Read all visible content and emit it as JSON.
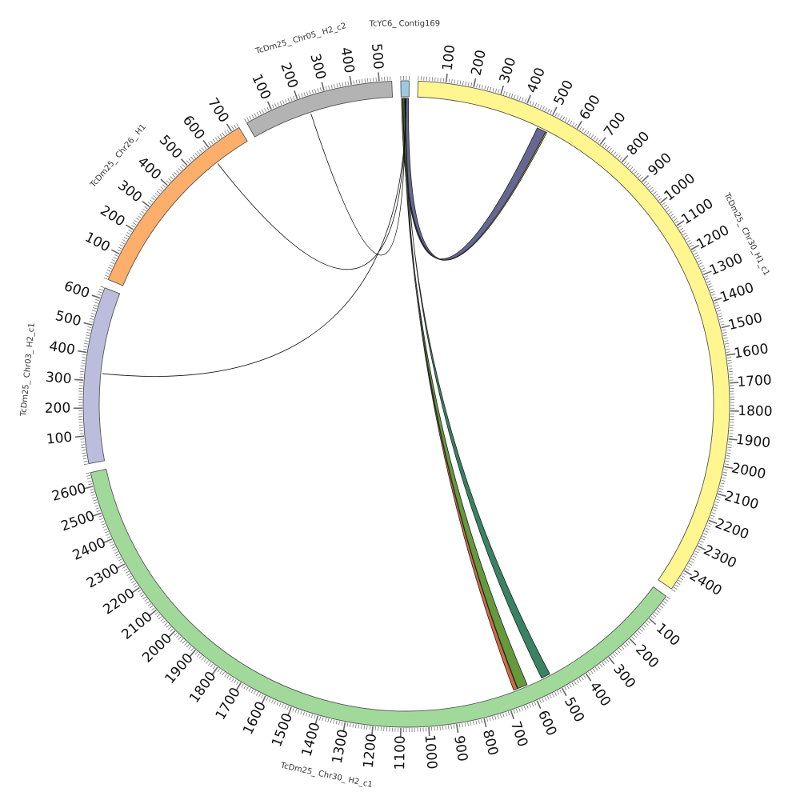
{
  "diagram": {
    "type": "circos",
    "sequences": [
      {
        "id": "contig169",
        "name": "TcYC6_ Contig169",
        "length": 30,
        "color": "#9ecae1",
        "major_step": 100,
        "show_labels": false
      },
      {
        "id": "chr30h1",
        "name": "TcDm25_ Chr30_H1_c1",
        "length": 2480,
        "color": "#fff68f",
        "major_step": 100,
        "show_labels": true
      },
      {
        "id": "chr30h2",
        "name": "TcDm25_ Chr30_ H2_c1",
        "length": 2650,
        "color": "#a1d99b",
        "major_step": 100,
        "show_labels": true
      },
      {
        "id": "chr03h2",
        "name": "TcDm25_ Chr03_ H2_c1",
        "length": 640,
        "color": "#bcbddc",
        "major_step": 100,
        "show_labels": true
      },
      {
        "id": "chr26h1",
        "name": "TcDm25_ Chr26_ H1",
        "length": 730,
        "color": "#fdae6b",
        "major_step": 100,
        "show_labels": true
      },
      {
        "id": "chr05h2",
        "name": "TcDm25_ Chr05_ H2_c2",
        "length": 545,
        "color": "#b3b3b3",
        "major_step": 100,
        "show_labels": true
      }
    ],
    "links": [
      {
        "source": "contig169",
        "source_start": 2,
        "source_end": 28,
        "target": "chr30h1",
        "target_start": 470,
        "target_end": 505,
        "color": "#5e5f8c",
        "kind": "band"
      },
      {
        "source": "contig169",
        "source_start": 2,
        "source_end": 6,
        "target": "chr30h1",
        "target_start": 505,
        "target_end": 510,
        "color": "#b8b03b",
        "kind": "band"
      },
      {
        "source": "contig169",
        "source_start": 8,
        "source_end": 12,
        "target": "chr30h2",
        "target_start": 650,
        "target_end": 665,
        "color": "#d0623a",
        "kind": "band"
      },
      {
        "source": "contig169",
        "source_start": 8,
        "source_end": 14,
        "target": "chr30h2",
        "target_start": 610,
        "target_end": 648,
        "color": "#5c9432",
        "kind": "band"
      },
      {
        "source": "contig169",
        "source_start": 13,
        "source_end": 16,
        "target": "chr30h2",
        "target_start": 515,
        "target_end": 550,
        "color": "#2e7b5b",
        "kind": "band"
      },
      {
        "source": "contig169",
        "source_start": 15,
        "source_end": 15,
        "target": "chr05h2",
        "target_start": 230,
        "target_end": 230,
        "color": "#111111",
        "kind": "line"
      },
      {
        "source": "contig169",
        "source_start": 17,
        "source_end": 17,
        "target": "chr26h1",
        "target_start": 590,
        "target_end": 590,
        "color": "#111111",
        "kind": "line"
      },
      {
        "source": "contig169",
        "source_start": 19,
        "source_end": 19,
        "target": "chr03h2",
        "target_start": 330,
        "target_end": 330,
        "color": "#111111",
        "kind": "line"
      }
    ]
  }
}
